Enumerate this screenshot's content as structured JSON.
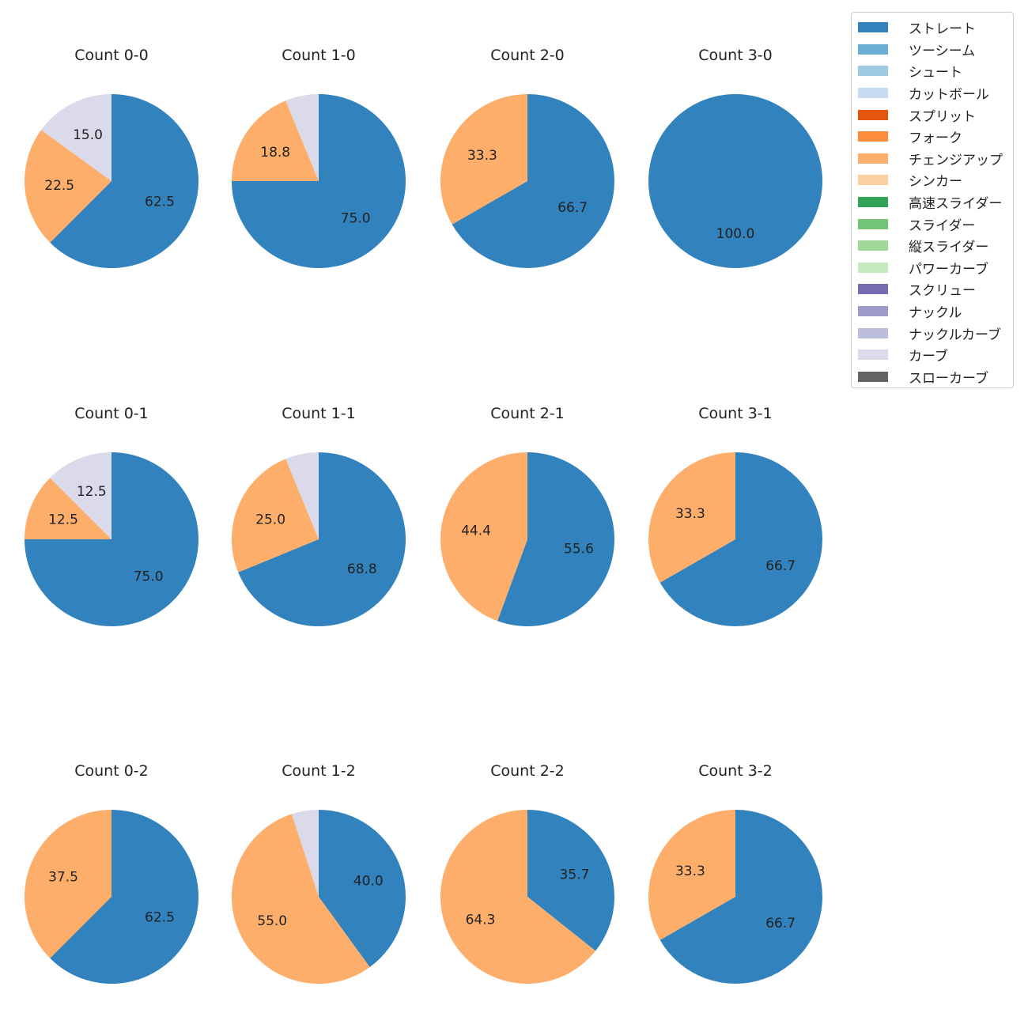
{
  "chart_data": {
    "type": "pie",
    "legend_position": "top-right",
    "legend": [
      {
        "name": "ストレート",
        "color": "#3182bd"
      },
      {
        "name": "ツーシーム",
        "color": "#6baed6"
      },
      {
        "name": "シュート",
        "color": "#9ecae1"
      },
      {
        "name": "カットボール",
        "color": "#c6dbef"
      },
      {
        "name": "スプリット",
        "color": "#e6550d"
      },
      {
        "name": "フォーク",
        "color": "#fd8d3c"
      },
      {
        "name": "チェンジアップ",
        "color": "#fdae6b"
      },
      {
        "name": "シンカー",
        "color": "#fdd0a2"
      },
      {
        "name": "高速スライダー",
        "color": "#31a354"
      },
      {
        "name": "スライダー",
        "color": "#74c476"
      },
      {
        "name": "縦スライダー",
        "color": "#a1d99b"
      },
      {
        "name": "パワーカーブ",
        "color": "#c7e9c0"
      },
      {
        "name": "スクリュー",
        "color": "#756bb1"
      },
      {
        "name": "ナックル",
        "color": "#9e9ac8"
      },
      {
        "name": "ナックルカーブ",
        "color": "#bcbddc"
      },
      {
        "name": "カーブ",
        "color": "#dadaeb"
      },
      {
        "name": "スローカーブ",
        "color": "#636363"
      }
    ],
    "pies": [
      {
        "title": "Count 0-0",
        "slices": [
          {
            "name": "ストレート",
            "value": 62.5,
            "label": "62.5"
          },
          {
            "name": "チェンジアップ",
            "value": 22.5,
            "label": "22.5"
          },
          {
            "name": "カーブ",
            "value": 15.0,
            "label": "15.0"
          }
        ]
      },
      {
        "title": "Count 1-0",
        "slices": [
          {
            "name": "ストレート",
            "value": 75.0,
            "label": "75.0"
          },
          {
            "name": "チェンジアップ",
            "value": 18.8,
            "label": "18.8"
          },
          {
            "name": "カーブ",
            "value": 6.2,
            "label": ""
          }
        ]
      },
      {
        "title": "Count 2-0",
        "slices": [
          {
            "name": "ストレート",
            "value": 66.7,
            "label": "66.7"
          },
          {
            "name": "チェンジアップ",
            "value": 33.3,
            "label": "33.3"
          }
        ]
      },
      {
        "title": "Count 3-0",
        "slices": [
          {
            "name": "ストレート",
            "value": 100.0,
            "label": "100.0"
          }
        ]
      },
      {
        "title": "Count 0-1",
        "slices": [
          {
            "name": "ストレート",
            "value": 75.0,
            "label": "75.0"
          },
          {
            "name": "チェンジアップ",
            "value": 12.5,
            "label": "12.5"
          },
          {
            "name": "カーブ",
            "value": 12.5,
            "label": "12.5"
          }
        ]
      },
      {
        "title": "Count 1-1",
        "slices": [
          {
            "name": "ストレート",
            "value": 68.8,
            "label": "68.8"
          },
          {
            "name": "チェンジアップ",
            "value": 25.0,
            "label": "25.0"
          },
          {
            "name": "カーブ",
            "value": 6.2,
            "label": ""
          }
        ]
      },
      {
        "title": "Count 2-1",
        "slices": [
          {
            "name": "ストレート",
            "value": 55.6,
            "label": "55.6"
          },
          {
            "name": "チェンジアップ",
            "value": 44.4,
            "label": "44.4"
          }
        ]
      },
      {
        "title": "Count 3-1",
        "slices": [
          {
            "name": "ストレート",
            "value": 66.7,
            "label": "66.7"
          },
          {
            "name": "チェンジアップ",
            "value": 33.3,
            "label": "33.3"
          }
        ]
      },
      {
        "title": "Count 0-2",
        "slices": [
          {
            "name": "ストレート",
            "value": 62.5,
            "label": "62.5"
          },
          {
            "name": "チェンジアップ",
            "value": 37.5,
            "label": "37.5"
          }
        ]
      },
      {
        "title": "Count 1-2",
        "slices": [
          {
            "name": "ストレート",
            "value": 40.0,
            "label": "40.0"
          },
          {
            "name": "チェンジアップ",
            "value": 55.0,
            "label": "55.0"
          },
          {
            "name": "カーブ",
            "value": 5.0,
            "label": ""
          }
        ]
      },
      {
        "title": "Count 2-2",
        "slices": [
          {
            "name": "ストレート",
            "value": 35.7,
            "label": "35.7"
          },
          {
            "name": "チェンジアップ",
            "value": 64.3,
            "label": "64.3"
          }
        ]
      },
      {
        "title": "Count 3-2",
        "slices": [
          {
            "name": "ストレート",
            "value": 66.7,
            "label": "66.7"
          },
          {
            "name": "チェンジアップ",
            "value": 33.3,
            "label": "33.3"
          }
        ]
      }
    ]
  }
}
